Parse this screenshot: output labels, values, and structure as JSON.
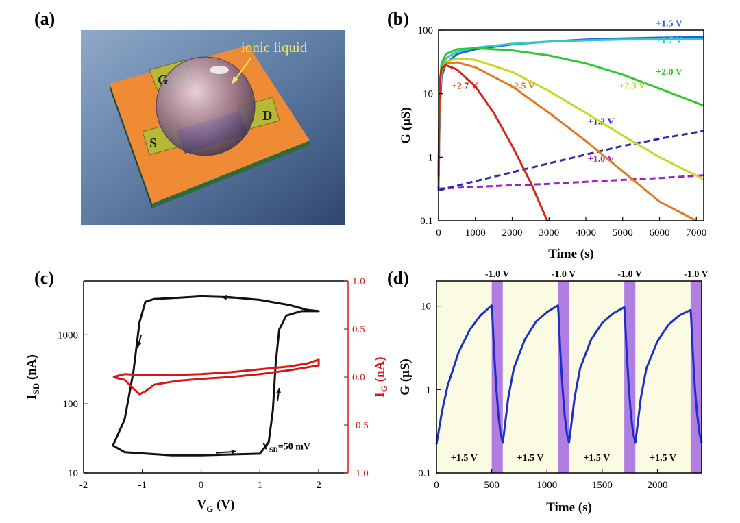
{
  "panels": {
    "a": {
      "label": "(a)",
      "illustration": {
        "pad_labels": [
          "G",
          "S",
          "D"
        ],
        "annotation": "ionic liquid"
      }
    },
    "b": {
      "label": "(b)"
    },
    "c": {
      "label": "(c)"
    },
    "d": {
      "label": "(d)"
    }
  },
  "chart_data": [
    {
      "id": "b",
      "type": "line",
      "xlabel": "Time (s)",
      "ylabel": "G (μS)",
      "xlim": [
        0,
        7200
      ],
      "ylim": [
        0.1,
        100
      ],
      "yscale": "log",
      "xticks": [
        "0",
        "1000",
        "2000",
        "3000",
        "4000",
        "5000",
        "6000",
        "7000"
      ],
      "xtick_values": [
        0,
        1000,
        2000,
        3000,
        4000,
        5000,
        6000,
        7000
      ],
      "yticks": [
        "0.1",
        "1",
        "10",
        "100"
      ],
      "ytick_values": [
        0.1,
        1,
        10,
        100
      ],
      "series": [
        {
          "name": "+1.0 V",
          "color": "#a020c0",
          "dash": true,
          "label_pos": [
            4050,
            0.85
          ],
          "x": [
            0,
            1000,
            2000,
            3000,
            4000,
            5000,
            6000,
            7200
          ],
          "y": [
            0.32,
            0.34,
            0.36,
            0.38,
            0.41,
            0.44,
            0.47,
            0.52
          ]
        },
        {
          "name": "+1.2 V",
          "color": "#2c2ca8",
          "dash": true,
          "label_pos": [
            4050,
            3.3
          ],
          "x": [
            0,
            1000,
            2000,
            3000,
            4000,
            5000,
            6000,
            7200
          ],
          "y": [
            0.3,
            0.42,
            0.58,
            0.8,
            1.1,
            1.5,
            1.95,
            2.6
          ]
        },
        {
          "name": "+1.5 V",
          "color": "#2060d8",
          "dash": false,
          "label_pos": [
            5900,
            115
          ],
          "x": [
            0,
            30,
            80,
            200,
            500,
            1000,
            2000,
            3000,
            4000,
            5000,
            6000,
            7200
          ],
          "y": [
            0.3,
            5,
            18,
            30,
            42,
            50,
            60,
            66,
            71,
            74,
            76,
            78
          ]
        },
        {
          "name": "+1.7 V",
          "color": "#30c8c8",
          "dash": false,
          "label_pos": [
            5900,
            62
          ],
          "x": [
            0,
            30,
            80,
            200,
            500,
            1000,
            2000,
            3000,
            4000,
            5000,
            6000,
            7200
          ],
          "y": [
            0.35,
            8,
            24,
            36,
            46,
            53,
            61,
            66,
            69,
            71,
            72,
            73
          ]
        },
        {
          "name": "+2.0 V",
          "color": "#30c830",
          "dash": false,
          "label_pos": [
            5900,
            20
          ],
          "x": [
            0,
            30,
            80,
            200,
            500,
            1000,
            2000,
            3000,
            4000,
            5000,
            6000,
            7200
          ],
          "y": [
            0.4,
            12,
            30,
            42,
            50,
            52,
            48,
            40,
            30,
            20,
            12,
            6.5
          ]
        },
        {
          "name": "+2.3 V",
          "color": "#c8d820",
          "dash": false,
          "label_pos": [
            4900,
            12
          ],
          "x": [
            0,
            30,
            80,
            200,
            500,
            1000,
            2000,
            3000,
            4000,
            5000,
            6000,
            7200
          ],
          "y": [
            0.4,
            10,
            22,
            32,
            36,
            34,
            22,
            11,
            5,
            2.2,
            1.0,
            0.45
          ]
        },
        {
          "name": "+2.5 V",
          "color": "#e07820",
          "dash": false,
          "label_pos": [
            1900,
            12
          ],
          "x": [
            0,
            30,
            80,
            200,
            500,
            1000,
            2000,
            3000,
            4000,
            5000,
            6000,
            7000
          ],
          "y": [
            0.4,
            12,
            24,
            30,
            31,
            26,
            13,
            5,
            1.8,
            0.6,
            0.2,
            0.1
          ]
        },
        {
          "name": "+2.7 V",
          "color": "#d02818",
          "dash": false,
          "label_pos": [
            350,
            12
          ],
          "x": [
            0,
            30,
            80,
            200,
            500,
            1000,
            1500,
            2000,
            2500,
            2950
          ],
          "y": [
            0.5,
            15,
            25,
            28,
            24,
            13,
            5,
            1.5,
            0.4,
            0.1
          ]
        }
      ]
    },
    {
      "id": "c",
      "type": "line",
      "xlabel_main": "V",
      "xlabel_sub": "G",
      "xlabel_unit": " (V)",
      "ylabel_main": "I",
      "ylabel_sub": "SD",
      "ylabel_unit": " (nA)",
      "y2label_main": "I",
      "y2label_sub": "G",
      "y2label_unit": " (nA)",
      "xlim": [
        -2,
        2.5
      ],
      "ylim": [
        10,
        6000
      ],
      "yscale": "log",
      "y2lim": [
        -1.0,
        1.0
      ],
      "xticks": [
        "-2",
        "-1",
        "0",
        "1",
        "2"
      ],
      "xtick_values": [
        -2,
        -1,
        0,
        1,
        2
      ],
      "yticks": [
        "10",
        "100",
        "1000"
      ],
      "ytick_values": [
        10,
        100,
        1000
      ],
      "y2ticks": [
        "-1.0",
        "-0.5",
        "0.0",
        "0.5",
        "1.0"
      ],
      "y2tick_values": [
        -1.0,
        -0.5,
        0.0,
        0.5,
        1.0
      ],
      "annotation_main": "V",
      "annotation_sub": "SD",
      "annotation_rest": "=50 mV",
      "series": [
        {
          "name": "I_SD",
          "color": "#111111",
          "axis": "left",
          "x": [
            0,
            1.0,
            1.15,
            1.22,
            1.27,
            1.33,
            1.45,
            1.7,
            2.0,
            1.8,
            1.5,
            1.0,
            0.5,
            0,
            -0.5,
            -0.8,
            -0.95,
            -1.05,
            -1.15,
            -1.3,
            -1.5,
            -1.3,
            -0.5,
            0
          ],
          "y": [
            18,
            19,
            28,
            80,
            400,
            1200,
            1900,
            2200,
            2200,
            2300,
            2700,
            3200,
            3500,
            3600,
            3400,
            3300,
            3000,
            1500,
            300,
            60,
            25,
            20,
            18,
            18
          ]
        },
        {
          "name": "I_G",
          "color": "#d81818",
          "axis": "right",
          "x": [
            -1.5,
            -1.3,
            -1.15,
            -1.05,
            -0.95,
            -0.8,
            -0.4,
            0,
            0.5,
            1.0,
            1.5,
            2.0,
            2.0,
            1.8,
            1.5,
            1.0,
            0.5,
            0,
            -0.5,
            -1.0,
            -1.3,
            -1.5
          ],
          "y": [
            0.0,
            -0.03,
            -0.12,
            -0.18,
            -0.15,
            -0.08,
            -0.04,
            -0.02,
            0.0,
            0.03,
            0.07,
            0.12,
            0.18,
            0.14,
            0.11,
            0.08,
            0.05,
            0.03,
            0.02,
            0.02,
            0.03,
            0.0
          ]
        }
      ],
      "arrows": [
        {
          "from": [
            0.55,
            3400
          ],
          "to": [
            0.35,
            3500
          ]
        },
        {
          "from": [
            -1.02,
            1000
          ],
          "to": [
            -1.08,
            650
          ]
        },
        {
          "from": [
            1.3,
            110
          ],
          "to": [
            1.33,
            170
          ]
        },
        {
          "from": [
            0.25,
            19.5
          ],
          "to": [
            0.6,
            20.5
          ]
        }
      ]
    },
    {
      "id": "d",
      "type": "line",
      "xlabel": "Time (s)",
      "ylabel": "G (μS)",
      "xlim": [
        0,
        2400
      ],
      "ylim": [
        0.1,
        20
      ],
      "yscale": "log",
      "xticks": [
        "0",
        "500",
        "1000",
        "1500",
        "2000"
      ],
      "xtick_values": [
        0,
        500,
        1000,
        1500,
        2000
      ],
      "yticks": [
        "0.1",
        "1",
        "10"
      ],
      "ytick_values": [
        0.1,
        1,
        10
      ],
      "bands": [
        [
          500,
          600
        ],
        [
          1100,
          1200
        ],
        [
          1700,
          1800
        ],
        [
          2300,
          2400
        ]
      ],
      "band_label": "-1.0 V",
      "period_label": "+1.5 V",
      "series": [
        {
          "name": "G",
          "color": "#1a2fc8",
          "x": [
            0,
            50,
            100,
            200,
            300,
            400,
            500,
            505,
            520,
            540,
            560,
            580,
            600,
            650,
            700,
            800,
            900,
            1000,
            1100,
            1105,
            1120,
            1140,
            1160,
            1180,
            1200,
            1250,
            1300,
            1400,
            1500,
            1600,
            1700,
            1705,
            1720,
            1740,
            1760,
            1780,
            1800,
            1850,
            1900,
            2000,
            2100,
            2200,
            2300,
            2305,
            2320,
            2340,
            2360,
            2380,
            2400
          ],
          "y": [
            0.22,
            0.55,
            1.1,
            2.8,
            5.2,
            7.8,
            10.2,
            8,
            3,
            1.1,
            0.5,
            0.3,
            0.23,
            0.8,
            1.8,
            4.0,
            6.5,
            8.5,
            10.2,
            8,
            3,
            1.1,
            0.5,
            0.3,
            0.23,
            0.8,
            1.8,
            4.0,
            6.3,
            8.2,
            9.7,
            7.8,
            3,
            1.1,
            0.5,
            0.3,
            0.23,
            0.8,
            1.8,
            3.8,
            6.0,
            7.8,
            9.0,
            7.2,
            2.8,
            1.0,
            0.5,
            0.3,
            0.23
          ]
        }
      ]
    }
  ]
}
